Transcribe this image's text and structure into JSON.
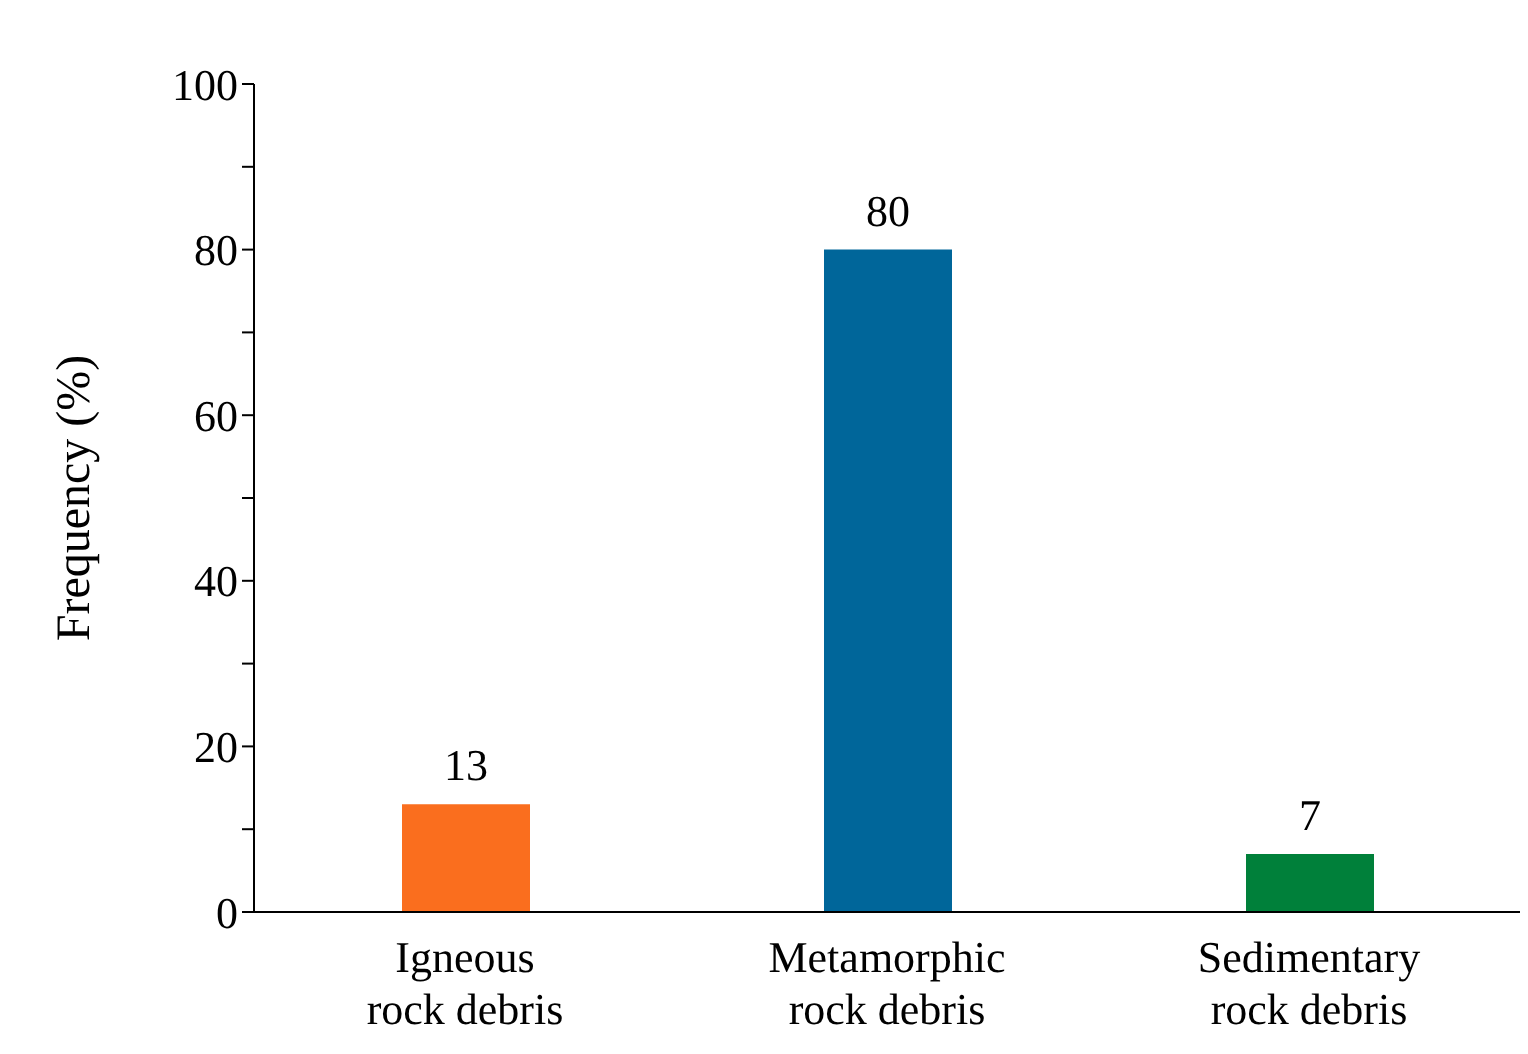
{
  "chart_data": {
    "type": "bar",
    "categories": [
      "Igneous rock debris",
      "Metamorphic rock debris",
      "Sedimentary rock debris"
    ],
    "values": [
      13,
      80,
      7
    ],
    "colors": [
      "#fa6e1e",
      "#00669a",
      "#00803a"
    ],
    "ylabel": "Frequency (%)",
    "ylim": [
      0,
      100
    ],
    "yticks": [
      0,
      {
        "value": 10,
        "label": null
      },
      20,
      {
        "value": 30,
        "label": null
      },
      40,
      {
        "value": 50,
        "label": null
      },
      60,
      {
        "value": 70,
        "label": null
      },
      80,
      {
        "value": 90,
        "label": null
      },
      100
    ],
    "data_labels": true,
    "grid": false,
    "legend": false
  }
}
